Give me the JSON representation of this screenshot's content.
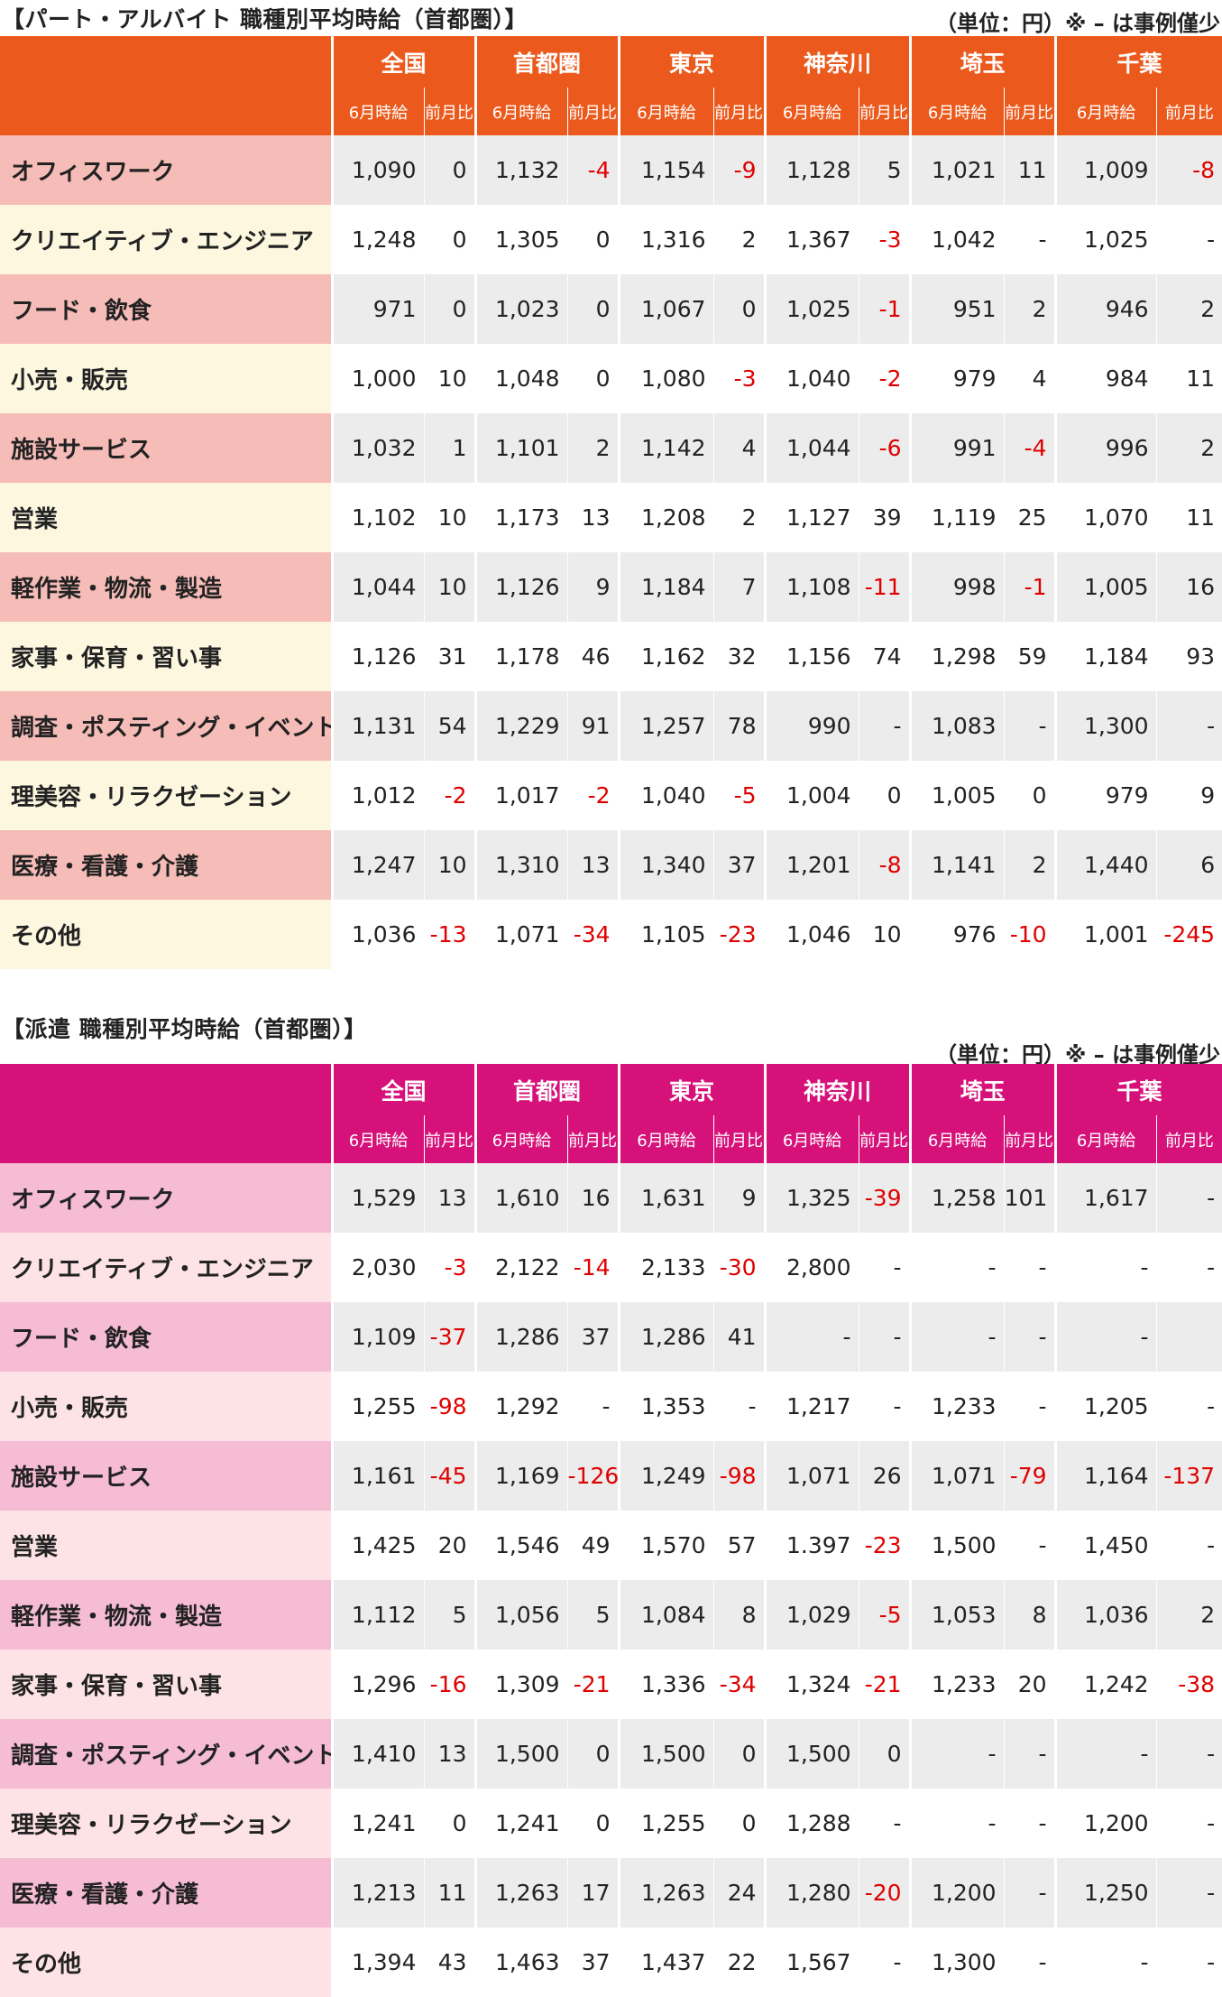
{
  "part_time": {
    "title": "【パート・アルバイト 職種別平均時給（首都圏）】",
    "unit_note": "（単位：円）※ – は事例僅少",
    "regions": [
      "全国",
      "首都圏",
      "東京",
      "神奈川",
      "埼玉",
      "千葉"
    ],
    "sub_headers": {
      "wage": "6月時給",
      "change": "前月比"
    },
    "rows": [
      {
        "category": "オフィスワーク",
        "values": [
          "1,090",
          "0",
          "1,132",
          "-4",
          "1,154",
          "-9",
          "1,128",
          "5",
          "1,021",
          "11",
          "1,009",
          "-8"
        ]
      },
      {
        "category": "クリエイティブ・エンジニア",
        "values": [
          "1,248",
          "0",
          "1,305",
          "0",
          "1,316",
          "2",
          "1,367",
          "-3",
          "1,042",
          "-",
          "1,025",
          "-"
        ]
      },
      {
        "category": "フード・飲食",
        "values": [
          "971",
          "0",
          "1,023",
          "0",
          "1,067",
          "0",
          "1,025",
          "-1",
          "951",
          "2",
          "946",
          "2"
        ]
      },
      {
        "category": "小売・販売",
        "values": [
          "1,000",
          "10",
          "1,048",
          "0",
          "1,080",
          "-3",
          "1,040",
          "-2",
          "979",
          "4",
          "984",
          "11"
        ]
      },
      {
        "category": "施設サービス",
        "values": [
          "1,032",
          "1",
          "1,101",
          "2",
          "1,142",
          "4",
          "1,044",
          "-6",
          "991",
          "-4",
          "996",
          "2"
        ]
      },
      {
        "category": "営業",
        "values": [
          "1,102",
          "10",
          "1,173",
          "13",
          "1,208",
          "2",
          "1,127",
          "39",
          "1,119",
          "25",
          "1,070",
          "11"
        ]
      },
      {
        "category": "軽作業・物流・製造",
        "values": [
          "1,044",
          "10",
          "1,126",
          "9",
          "1,184",
          "7",
          "1,108",
          "-11",
          "998",
          "-1",
          "1,005",
          "16"
        ]
      },
      {
        "category": "家事・保育・習い事",
        "values": [
          "1,126",
          "31",
          "1,178",
          "46",
          "1,162",
          "32",
          "1,156",
          "74",
          "1,298",
          "59",
          "1,184",
          "93"
        ]
      },
      {
        "category": "調査・ポスティング・イベント",
        "values": [
          "1,131",
          "54",
          "1,229",
          "91",
          "1,257",
          "78",
          "990",
          "-",
          "1,083",
          "-",
          "1,300",
          "-"
        ]
      },
      {
        "category": "理美容・リラクゼーション",
        "values": [
          "1,012",
          "-2",
          "1,017",
          "-2",
          "1,040",
          "-5",
          "1,004",
          "0",
          "1,005",
          "0",
          "979",
          "9"
        ]
      },
      {
        "category": "医療・看護・介護",
        "values": [
          "1,247",
          "10",
          "1,310",
          "13",
          "1,340",
          "37",
          "1,201",
          "-8",
          "1,141",
          "2",
          "1,440",
          "6"
        ]
      },
      {
        "category": "その他",
        "values": [
          "1,036",
          "-13",
          "1,071",
          "-34",
          "1,105",
          "-23",
          "1,046",
          "10",
          "976",
          "-10",
          "1,001",
          "-245"
        ]
      }
    ]
  },
  "dispatch": {
    "title": "【派遣 職種別平均時給（首都圏）】",
    "unit_note": "（単位：円）※ – は事例僅少",
    "regions": [
      "全国",
      "首都圏",
      "東京",
      "神奈川",
      "埼玉",
      "千葉"
    ],
    "sub_headers": {
      "wage": "6月時給",
      "change": "前月比"
    },
    "rows": [
      {
        "category": "オフィスワーク",
        "values": [
          "1,529",
          "13",
          "1,610",
          "16",
          "1,631",
          "9",
          "1,325",
          "-39",
          "1,258",
          "101",
          "1,617",
          "-"
        ]
      },
      {
        "category": "クリエイティブ・エンジニア",
        "values": [
          "2,030",
          "-3",
          "2,122",
          "-14",
          "2,133",
          "-30",
          "2,800",
          "-",
          "-",
          "-",
          "-",
          "-"
        ]
      },
      {
        "category": "フード・飲食",
        "values": [
          "1,109",
          "-37",
          "1,286",
          "37",
          "1,286",
          "41",
          "-",
          "-",
          "-",
          "-",
          "-",
          ""
        ]
      },
      {
        "category": "小売・販売",
        "values": [
          "1,255",
          "-98",
          "1,292",
          "-",
          "1,353",
          "-",
          "1,217",
          "-",
          "1,233",
          "-",
          "1,205",
          "-"
        ]
      },
      {
        "category": "施設サービス",
        "values": [
          "1,161",
          "-45",
          "1,169",
          "-126",
          "1,249",
          "-98",
          "1,071",
          "26",
          "1,071",
          "-79",
          "1,164",
          "-137"
        ]
      },
      {
        "category": "営業",
        "values": [
          "1,425",
          "20",
          "1,546",
          "49",
          "1,570",
          "57",
          "1.397",
          "-23",
          "1,500",
          "-",
          "1,450",
          "-"
        ]
      },
      {
        "category": "軽作業・物流・製造",
        "values": [
          "1,112",
          "5",
          "1,056",
          "5",
          "1,084",
          "8",
          "1,029",
          "-5",
          "1,053",
          "8",
          "1,036",
          "2"
        ]
      },
      {
        "category": "家事・保育・習い事",
        "values": [
          "1,296",
          "-16",
          "1,309",
          "-21",
          "1,336",
          "-34",
          "1,324",
          "-21",
          "1,233",
          "20",
          "1,242",
          "-38"
        ]
      },
      {
        "category": "調査・ポスティング・イベント",
        "values": [
          "1,410",
          "13",
          "1,500",
          "0",
          "1,500",
          "0",
          "1,500",
          "0",
          "-",
          "-",
          "-",
          "-"
        ]
      },
      {
        "category": "理美容・リラクゼーション",
        "values": [
          "1,241",
          "0",
          "1,241",
          "0",
          "1,255",
          "0",
          "1,288",
          "-",
          "-",
          "-",
          "1,200",
          "-"
        ]
      },
      {
        "category": "医療・看護・介護",
        "values": [
          "1,213",
          "11",
          "1,263",
          "17",
          "1,263",
          "24",
          "1,280",
          "-20",
          "1,200",
          "-",
          "1,250",
          "-"
        ]
      },
      {
        "category": "その他",
        "values": [
          "1,394",
          "43",
          "1,463",
          "37",
          "1,437",
          "22",
          "1,567",
          "-",
          "1,300",
          "-",
          "-",
          "-"
        ]
      }
    ]
  }
}
